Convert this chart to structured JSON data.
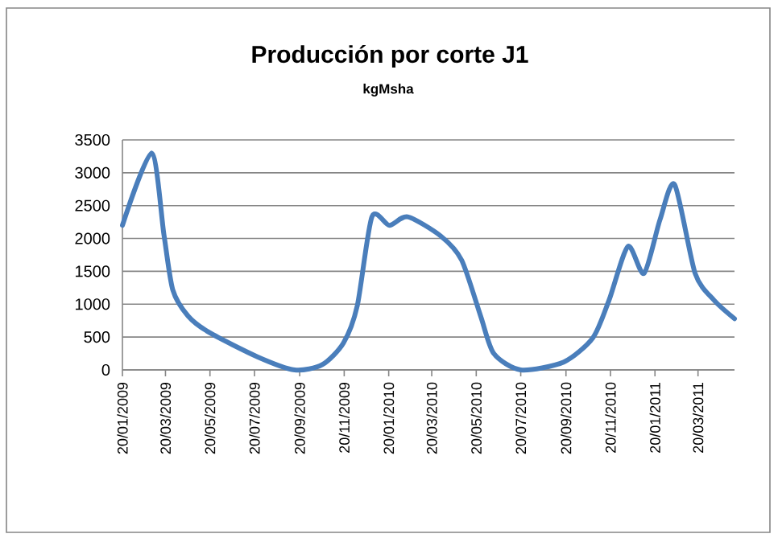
{
  "chart_data": {
    "type": "line",
    "title": "Producción por corte J1",
    "subtitle": "kgMsha",
    "x": [
      "2009-01-20",
      "2009-03-01",
      "2009-03-18",
      "2009-03-30",
      "2009-04-20",
      "2009-05-19",
      "2009-07-24",
      "2009-09-13",
      "2009-10-21",
      "2009-11-19",
      "2009-12-08",
      "2009-12-28",
      "2010-01-21",
      "2010-02-15",
      "2010-04-01",
      "2010-04-30",
      "2010-05-26",
      "2010-06-13",
      "2010-07-20",
      "2010-09-17",
      "2010-10-27",
      "2010-11-18",
      "2010-12-14",
      "2011-01-05",
      "2011-01-27",
      "2011-02-16",
      "2011-03-16",
      "2011-04-11",
      "2011-05-09"
    ],
    "series": [
      {
        "color": "#4a7ebb",
        "values": [
          2200,
          3300,
          2050,
          1220,
          820,
          570,
          200,
          0,
          80,
          410,
          980,
          2330,
          2200,
          2330,
          2040,
          1670,
          820,
          250,
          0,
          120,
          490,
          1060,
          1880,
          1470,
          2290,
          2820,
          1470,
          1060,
          780
        ]
      }
    ],
    "xlim": [
      "2009-01-20",
      "2011-05-09"
    ],
    "xticks": [
      {
        "value": "2009-01-20",
        "label": "20/01/2009"
      },
      {
        "value": "2009-03-20",
        "label": "20/03/2009"
      },
      {
        "value": "2009-05-20",
        "label": "20/05/2009"
      },
      {
        "value": "2009-07-20",
        "label": "20/07/2009"
      },
      {
        "value": "2009-09-20",
        "label": "20/09/2009"
      },
      {
        "value": "2009-11-20",
        "label": "20/11/2009"
      },
      {
        "value": "2010-01-20",
        "label": "20/01/2010"
      },
      {
        "value": "2010-03-20",
        "label": "20/03/2010"
      },
      {
        "value": "2010-05-20",
        "label": "20/05/2010"
      },
      {
        "value": "2010-07-20",
        "label": "20/07/2010"
      },
      {
        "value": "2010-09-20",
        "label": "20/09/2010"
      },
      {
        "value": "2010-11-20",
        "label": "20/11/2010"
      },
      {
        "value": "2011-01-20",
        "label": "20/01/2011"
      },
      {
        "value": "2011-03-20",
        "label": "20/03/2011"
      }
    ],
    "ylim": [
      0,
      3500
    ],
    "yticks": [
      0,
      500,
      1000,
      1500,
      2000,
      2500,
      3000,
      3500
    ],
    "grid": "y",
    "marker": "none",
    "line_style": "solid"
  }
}
